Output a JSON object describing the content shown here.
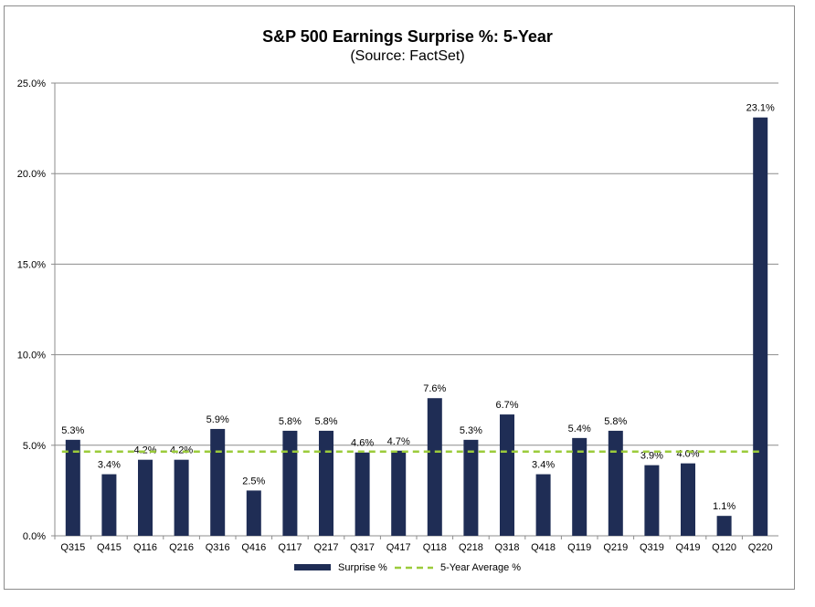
{
  "chart_data": {
    "type": "bar",
    "title": "S&P 500 Earnings Surprise %: 5-Year",
    "subtitle": "(Source: FactSet)",
    "categories": [
      "Q315",
      "Q415",
      "Q116",
      "Q216",
      "Q316",
      "Q416",
      "Q117",
      "Q217",
      "Q317",
      "Q417",
      "Q118",
      "Q218",
      "Q318",
      "Q418",
      "Q119",
      "Q219",
      "Q319",
      "Q419",
      "Q120",
      "Q220"
    ],
    "series": [
      {
        "name": "Surprise %",
        "type": "bar",
        "color": "#1f2d55",
        "values": [
          5.3,
          3.4,
          4.2,
          4.2,
          5.9,
          2.5,
          5.8,
          5.8,
          4.6,
          4.7,
          7.6,
          5.3,
          6.7,
          3.4,
          5.4,
          5.8,
          3.9,
          4.0,
          1.1,
          23.1
        ],
        "labels": [
          "5.3%",
          "3.4%",
          "4.2%",
          "4.2%",
          "5.9%",
          "2.5%",
          "5.8%",
          "5.8%",
          "4.6%",
          "4.7%",
          "7.6%",
          "5.3%",
          "6.7%",
          "3.4%",
          "5.4%",
          "5.8%",
          "3.9%",
          "4.0%",
          "1.1%",
          "23.1%"
        ]
      },
      {
        "name": "5-Year Average %",
        "type": "line",
        "style": "dashed",
        "color": "#9bcb3b",
        "value": 4.65
      }
    ],
    "ylim": [
      0,
      25
    ],
    "yticks": [
      0,
      5,
      10,
      15,
      20,
      25
    ],
    "ytick_labels": [
      "0.0%",
      "5.0%",
      "10.0%",
      "15.0%",
      "20.0%",
      "25.0%"
    ],
    "grid": true,
    "legend": "bottom"
  }
}
